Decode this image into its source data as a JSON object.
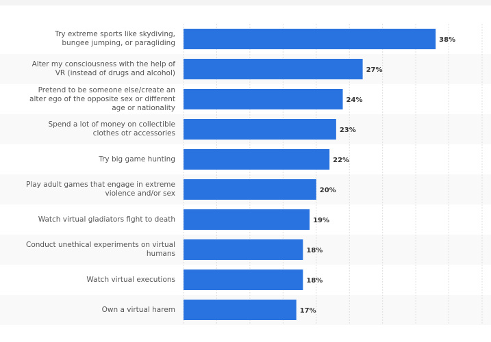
{
  "chart_data": {
    "type": "hbar",
    "categories": [
      "Try extreme sports like skydiving,\nbungee jumping, or paragliding",
      "Alter my consciousness with the help of\nVR (instead of drugs and alcohol)",
      "Pretend to be someone else/create an\nalter ego of the opposite sex or different\nage or nationality",
      "Spend a lot of money on collectible\nclothes otr accessories",
      "Try big game hunting",
      "Play adult games that engage in extreme\nviolence and/or sex",
      "Watch virtual gladiators fight to death",
      "Conduct unethical experiments on virtual\nhumans",
      "Watch virtual executions",
      "Own a virtual harem"
    ],
    "values": [
      38,
      27,
      24,
      23,
      22,
      20,
      19,
      18,
      18,
      17
    ],
    "value_labels": [
      "38%",
      "27%",
      "24%",
      "23%",
      "22%",
      "20%",
      "19%",
      "18%",
      "18%",
      "17%"
    ],
    "color": "#2873e0",
    "xlim": [
      0,
      45
    ],
    "xticks": [
      0,
      5,
      10,
      15,
      20,
      25,
      30,
      35,
      40,
      45
    ],
    "grid": true
  }
}
